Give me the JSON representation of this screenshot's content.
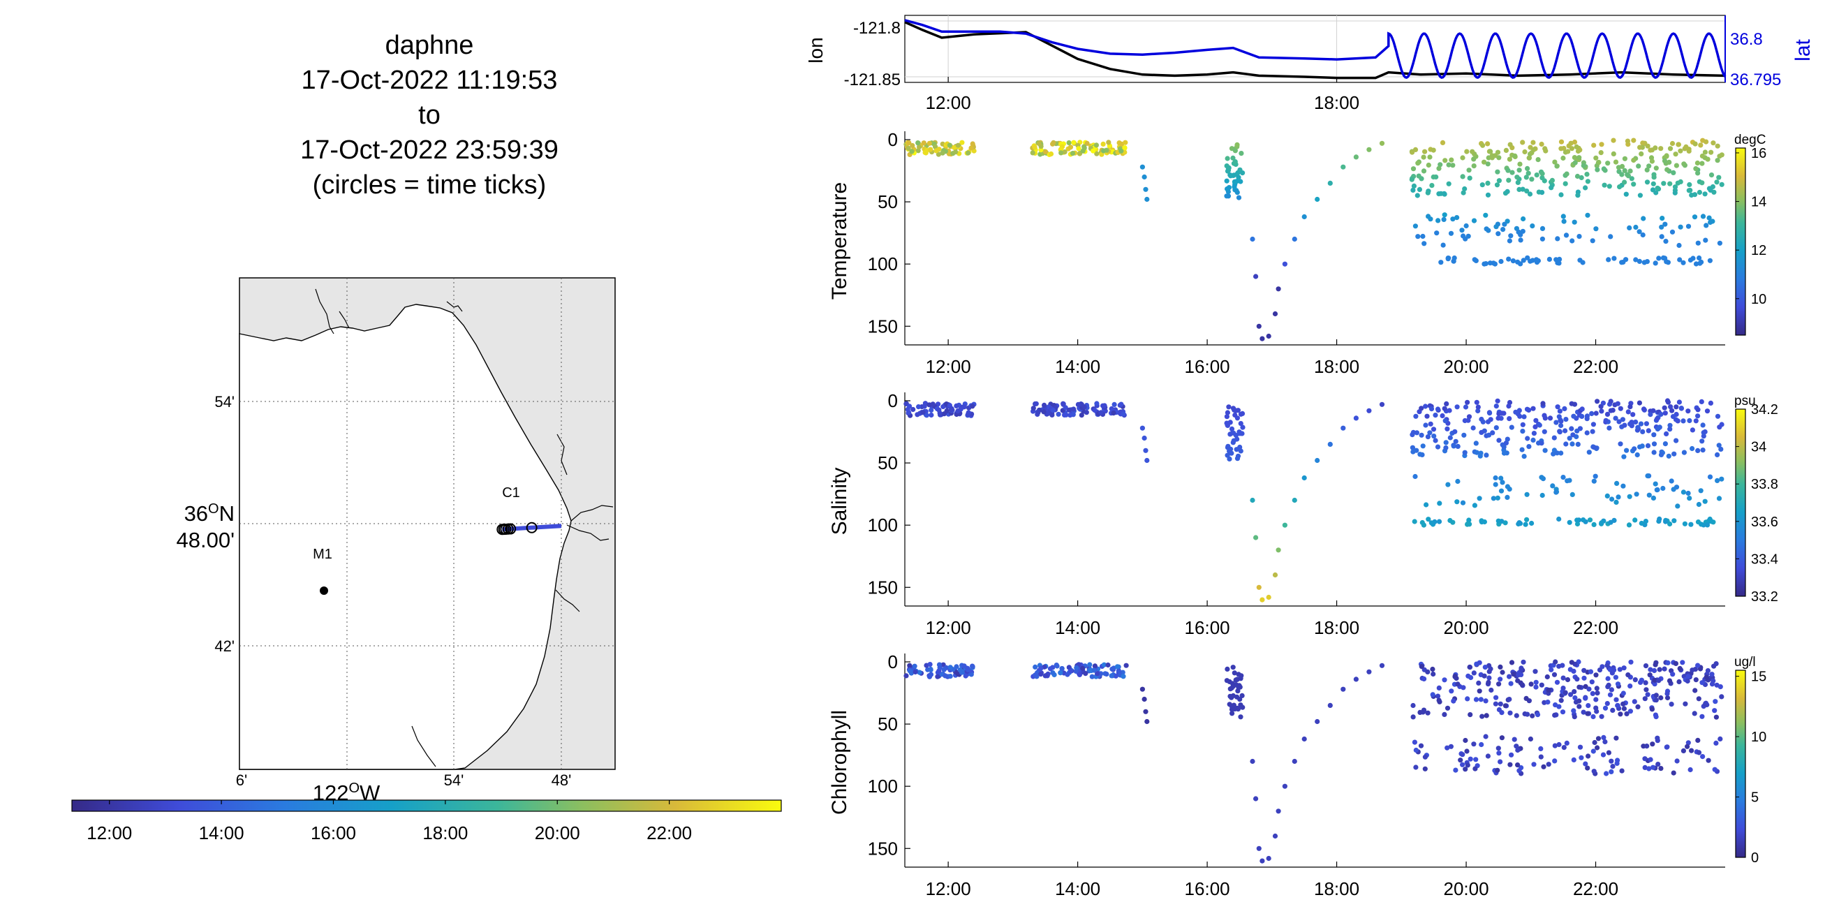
{
  "title_block": {
    "line1": "daphne",
    "line2": "17-Oct-2022 11:19:53",
    "line3": "to",
    "line4": "17-Oct-2022 23:59:39",
    "line5": "(circles = time ticks)"
  },
  "colors": {
    "lon_line": "#000000",
    "lat_line": "#0000dd",
    "land": "#e6e6e6",
    "water": "#ffffff"
  },
  "chart_data": [
    {
      "type": "map",
      "lat_ticks": [
        "54'",
        "48.00'",
        "42'"
      ],
      "lat_major_label": "36°N",
      "lat_major_deg": "36",
      "lat_major_suffix": "N",
      "lat_major_sup": "O",
      "lon_ticks": [
        "6'",
        "54'",
        "48'"
      ],
      "lon_major_deg": "122",
      "lon_major_sup": "O",
      "lon_major_suffix": "W",
      "stations": [
        {
          "name": "M1",
          "lat": 36.747,
          "lon": -122.022
        },
        {
          "name": "C1",
          "lat": 36.797,
          "lon": -121.847
        }
      ],
      "track_lon_range": [
        -121.855,
        -121.8
      ],
      "track_lat": 36.797,
      "time_colorbar": {
        "ticks": [
          "12:00",
          "14:00",
          "16:00",
          "18:00",
          "20:00",
          "22:00"
        ],
        "range_hours": [
          11.33,
          24.0
        ]
      }
    },
    {
      "type": "line",
      "ylabel_left": "lon",
      "ylabel_right": "lat",
      "yticks_left": [
        "-121.8",
        "-121.85"
      ],
      "yticks_right": [
        "36.8",
        "36.795"
      ],
      "ylim_left": [
        -121.855,
        -121.795
      ],
      "ylim_right": [
        36.7945,
        36.8015
      ],
      "xticks": [
        "12:00",
        "18:00"
      ],
      "xlim_hours": [
        11.33,
        24.0
      ],
      "series": [
        {
          "axis": "left",
          "x": [
            11.33,
            11.6,
            11.9,
            12.4,
            12.8,
            13.2,
            13.6,
            14.0,
            14.5,
            15.0,
            15.5,
            16.0,
            16.4,
            16.8,
            17.5,
            18.0,
            18.6,
            18.8,
            19.3,
            20.0,
            20.8,
            21.6,
            22.4,
            23.2,
            24.0
          ],
          "y": [
            -121.801,
            -121.808,
            -121.815,
            -121.812,
            -121.811,
            -121.81,
            -121.822,
            -121.834,
            -121.843,
            -121.848,
            -121.849,
            -121.848,
            -121.846,
            -121.849,
            -121.85,
            -121.851,
            -121.851,
            -121.846,
            -121.848,
            -121.847,
            -121.849,
            -121.848,
            -121.846,
            -121.848,
            -121.849
          ]
        },
        {
          "axis": "right",
          "x": [
            11.33,
            11.6,
            11.9,
            12.4,
            12.8,
            13.2,
            13.6,
            14.0,
            14.5,
            15.0,
            15.5,
            16.0,
            16.4,
            16.8,
            17.5,
            18.0,
            18.6,
            18.8
          ],
          "y": [
            36.801,
            36.8005,
            36.7998,
            36.7998,
            36.7998,
            36.7996,
            36.7987,
            36.798,
            36.7975,
            36.7974,
            36.7976,
            36.7979,
            36.7981,
            36.7971,
            36.797,
            36.7969,
            36.7971,
            36.7983
          ]
        }
      ],
      "lat_oscillation": {
        "start_hour": 18.8,
        "end_hour": 24.0,
        "high": 36.7996,
        "low": 36.795,
        "period_hours": 0.55
      }
    },
    {
      "type": "scatter",
      "ylabel": "Temperature",
      "units": "degC",
      "yticks": [
        "0",
        "50",
        "100",
        "150"
      ],
      "ylim": [
        0,
        165
      ],
      "xticks": [
        "12:00",
        "14:00",
        "16:00",
        "18:00",
        "20:00",
        "22:00"
      ],
      "xlim_hours": [
        11.33,
        24.0
      ],
      "cbar_ticks": [
        "16",
        "14",
        "12",
        "10"
      ],
      "cbar_range": [
        8.5,
        16.2
      ]
    },
    {
      "type": "scatter",
      "ylabel": "Salinity",
      "units": "psu",
      "yticks": [
        "0",
        "50",
        "100",
        "150"
      ],
      "ylim": [
        0,
        165
      ],
      "xticks": [
        "12:00",
        "14:00",
        "16:00",
        "18:00",
        "20:00",
        "22:00"
      ],
      "xlim_hours": [
        11.33,
        24.0
      ],
      "cbar_ticks": [
        "34.2",
        "34",
        "33.8",
        "33.6",
        "33.4",
        "33.2"
      ],
      "cbar_range": [
        33.2,
        34.2
      ]
    },
    {
      "type": "scatter",
      "ylabel": "Chlorophyll",
      "units": "ug/l",
      "yticks": [
        "0",
        "50",
        "100",
        "150"
      ],
      "ylim": [
        0,
        165
      ],
      "xticks": [
        "12:00",
        "14:00",
        "16:00",
        "18:00",
        "20:00",
        "22:00"
      ],
      "xlim_hours": [
        11.33,
        24.0
      ],
      "cbar_ticks": [
        "15",
        "10",
        "5",
        "0"
      ],
      "cbar_range": [
        0,
        15.5
      ]
    }
  ]
}
